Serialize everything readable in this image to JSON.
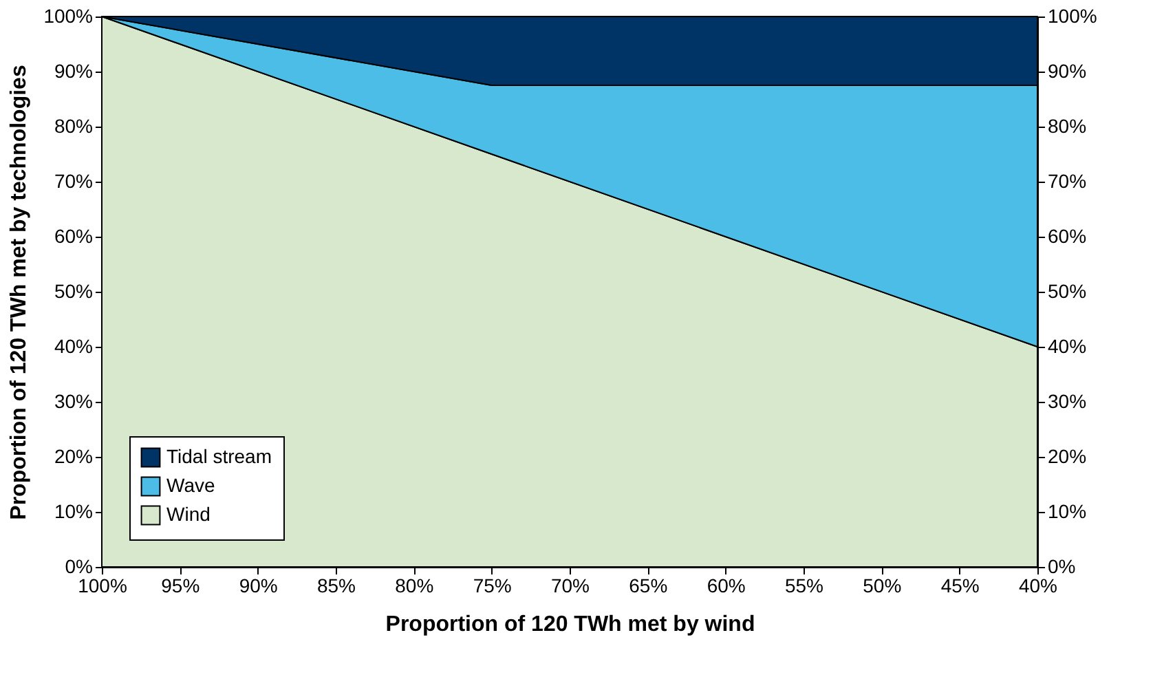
{
  "chart_data": {
    "type": "area",
    "stacked": true,
    "xlabel": "Proportion of 120 TWh met by wind",
    "ylabel": "Proportion of 120 TWh met by technologies",
    "x": [
      100,
      75,
      40
    ],
    "series": [
      {
        "name": "Wind",
        "color": "#d7e8cc",
        "values": [
          100,
          75,
          40
        ]
      },
      {
        "name": "Wave",
        "color": "#4bbde6",
        "values": [
          0,
          12.5,
          47.5
        ]
      },
      {
        "name": "Tidal stream",
        "color": "#003366",
        "values": [
          0,
          12.5,
          12.5
        ]
      }
    ],
    "xlim": [
      100,
      40
    ],
    "xticks": [
      {
        "value": 100,
        "label": "100%"
      },
      {
        "value": 95,
        "label": "95%"
      },
      {
        "value": 90,
        "label": "90%"
      },
      {
        "value": 85,
        "label": "85%"
      },
      {
        "value": 80,
        "label": "80%"
      },
      {
        "value": 75,
        "label": "75%"
      },
      {
        "value": 70,
        "label": "70%"
      },
      {
        "value": 65,
        "label": "65%"
      },
      {
        "value": 60,
        "label": "60%"
      },
      {
        "value": 55,
        "label": "55%"
      },
      {
        "value": 50,
        "label": "50%"
      },
      {
        "value": 45,
        "label": "45%"
      },
      {
        "value": 40,
        "label": "40%"
      }
    ],
    "ylim": [
      0,
      100
    ],
    "yticks": [
      {
        "value": 0,
        "label": "0%"
      },
      {
        "value": 10,
        "label": "10%"
      },
      {
        "value": 20,
        "label": "20%"
      },
      {
        "value": 30,
        "label": "30%"
      },
      {
        "value": 40,
        "label": "40%"
      },
      {
        "value": 50,
        "label": "50%"
      },
      {
        "value": 60,
        "label": "60%"
      },
      {
        "value": 70,
        "label": "70%"
      },
      {
        "value": 80,
        "label": "80%"
      },
      {
        "value": 90,
        "label": "90%"
      },
      {
        "value": 100,
        "label": "100%"
      }
    ],
    "y2lim": [
      0,
      100
    ],
    "y2ticks": [
      {
        "value": 0,
        "label": "0%"
      },
      {
        "value": 10,
        "label": "10%"
      },
      {
        "value": 20,
        "label": "20%"
      },
      {
        "value": 30,
        "label": "30%"
      },
      {
        "value": 40,
        "label": "40%"
      },
      {
        "value": 50,
        "label": "50%"
      },
      {
        "value": 60,
        "label": "60%"
      },
      {
        "value": 70,
        "label": "70%"
      },
      {
        "value": 80,
        "label": "80%"
      },
      {
        "value": 90,
        "label": "90%"
      },
      {
        "value": 100,
        "label": "100%"
      }
    ],
    "legend": "bottom left"
  }
}
